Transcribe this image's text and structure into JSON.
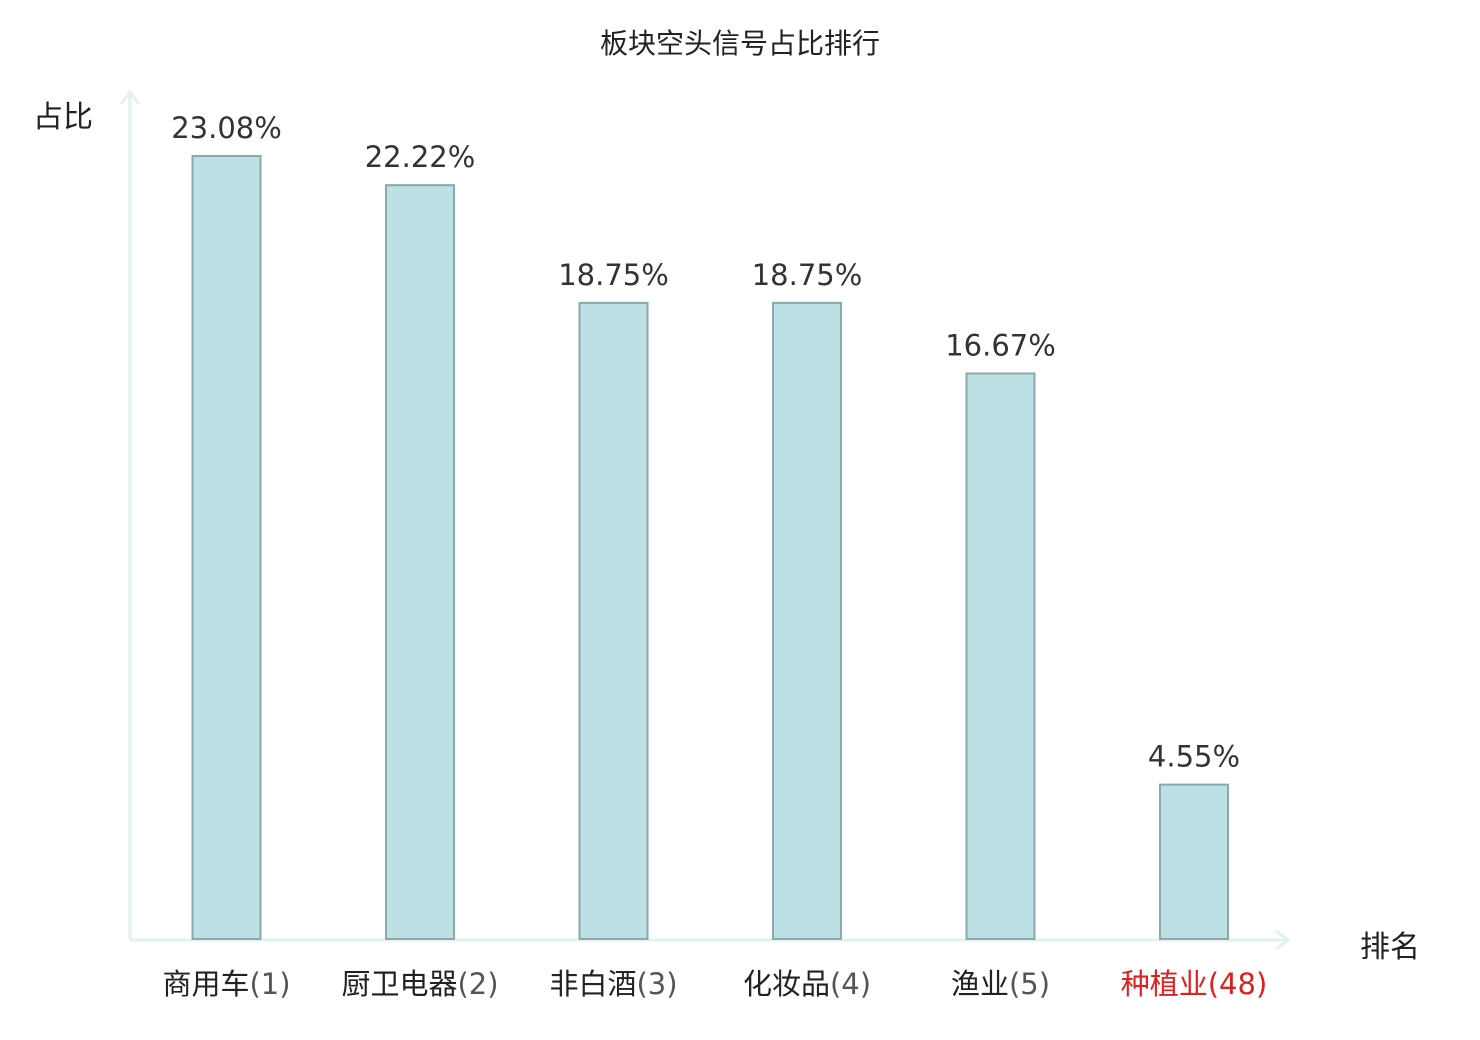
{
  "chart_data": {
    "type": "bar",
    "title": "板块空头信号占比排行",
    "xlabel": "排名",
    "ylabel": "占比",
    "categories": [
      {
        "name": "商用车",
        "rank": "(1)",
        "highlight": false
      },
      {
        "name": "厨卫电器",
        "rank": "(2)",
        "highlight": false
      },
      {
        "name": "非白酒",
        "rank": "(3)",
        "highlight": false
      },
      {
        "name": "化妆品",
        "rank": "(4)",
        "highlight": false
      },
      {
        "name": "渔业",
        "rank": "(5)",
        "highlight": false
      },
      {
        "name": "种植业",
        "rank": "(48)",
        "highlight": true
      }
    ],
    "values": [
      23.08,
      22.22,
      18.75,
      18.75,
      16.67,
      4.55
    ],
    "value_labels": [
      "23.08%",
      "22.22%",
      "18.75%",
      "18.75%",
      "16.67%",
      "4.55%"
    ],
    "ylim": [
      0,
      24
    ],
    "grid": false,
    "colors": {
      "bar_fill": "#bce0e3",
      "bar_stroke": "#8aa9ab",
      "axis": "#e2f2f0",
      "label_text": "#222222",
      "rank_text": "#555555",
      "value_text": "#333333",
      "highlight": "#e02020"
    }
  }
}
